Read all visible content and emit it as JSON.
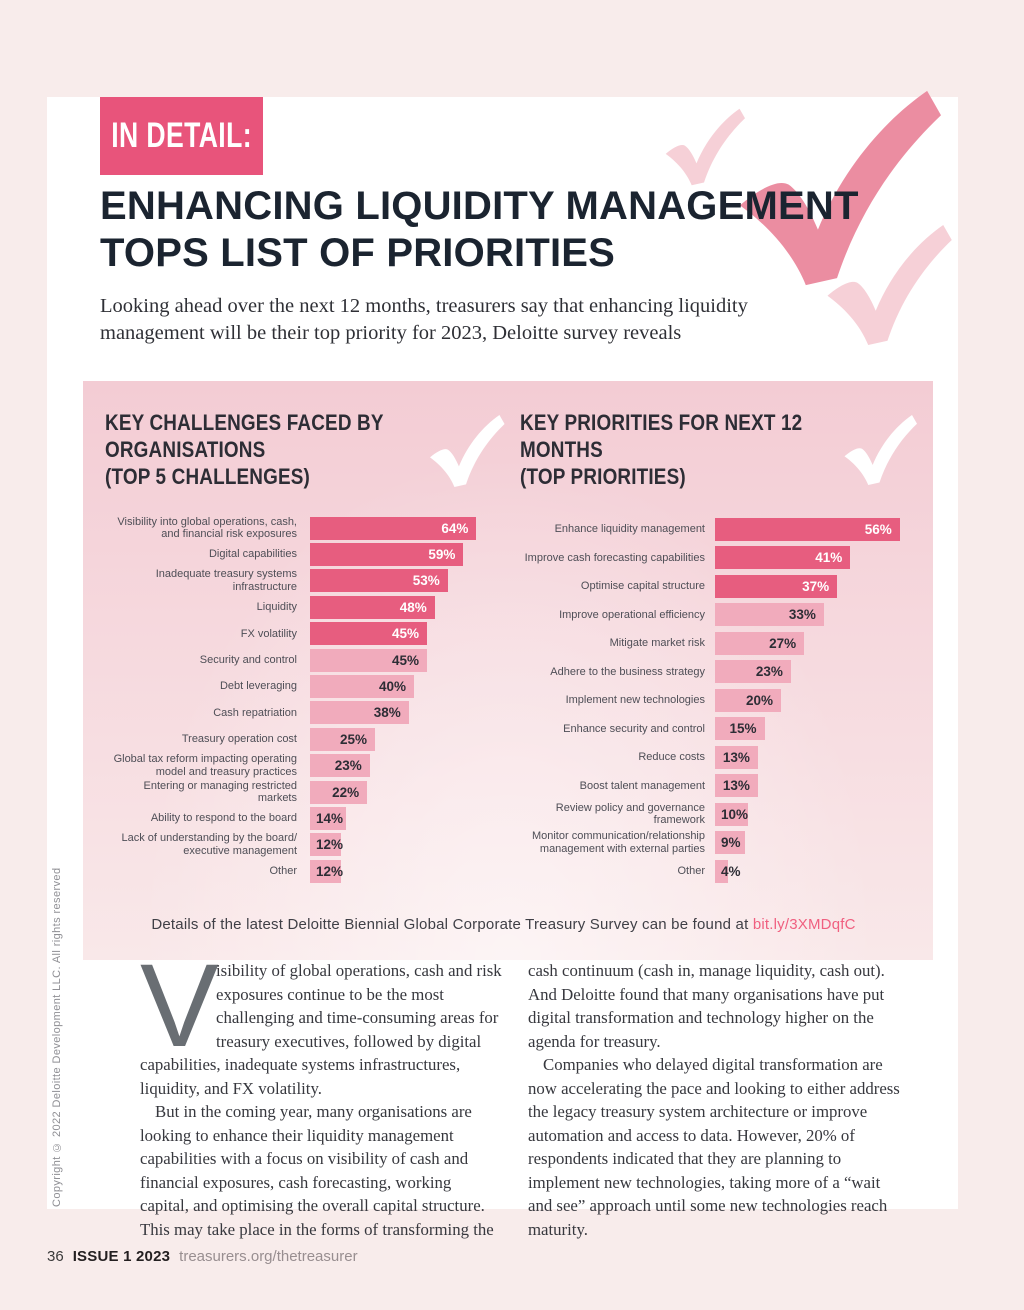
{
  "page": {
    "kicker": "IN DETAIL:",
    "title": "ENHANCING LIQUIDITY MANAGEMENT\nTOPS LIST OF PRIORITIES",
    "standfirst": "Looking ahead over the next 12 months, treasurers say that enhancing liquidity management will be their top priority for 2023, Deloitte survey reveals",
    "details_prefix": "Details of the latest Deloitte Biennial Global Corporate Treasury Survey can be found at ",
    "details_link": "bit.ly/3XMDqfC",
    "copyright_vertical": "Copyright © 2022 Deloitte Development LLC. All rights reserved",
    "footer": {
      "page_number": "36",
      "issue": "ISSUE 1 2023",
      "site": "treasurers.org/thetreasurer"
    }
  },
  "body": {
    "dropcap": "V",
    "col1_p1_rest": "isibility of global operations, cash and risk exposures continue to be the most challenging and time-consuming areas for treasury executives, followed by digital capabilities, inadequate systems infrastructures, liquidity, and FX volatility.",
    "col1_p2": "But in the coming year, many organisations are looking to enhance their liquidity management capabilities with a focus on visibility of cash and financial exposures, cash forecasting, working capital, and optimising the overall capital structure. This may take place in the forms of transforming the",
    "col2_p1": "cash continuum (cash in, manage liquidity, cash out). And Deloitte found that many organisations have put digital transformation and technology higher on the agenda for treasury.",
    "col2_p2": "Companies who delayed digital transformation are now accelerating the pace and looking to either address the legacy treasury system architecture or improve automation and access to data. However, 20% of respondents indicated that they are planning to implement new technologies, taking more of a “wait and see” approach until some new technologies reach maturity."
  },
  "chart_data": [
    {
      "type": "bar",
      "orientation": "horizontal",
      "title": "KEY CHALLENGES FACED BY ORGANISATIONS\n(TOP 5 CHALLENGES)",
      "unit": "%",
      "highlight_top": 5,
      "xlim": [
        0,
        64
      ],
      "categories": [
        "Visibility into global operations, cash,\nand financial risk exposures",
        "Digital capabilities",
        "Inadequate treasury systems\ninfrastructure",
        "Liquidity",
        "FX volatility",
        "Security and control",
        "Debt leveraging",
        "Cash repatriation",
        "Treasury operation cost",
        "Global tax reform impacting operating\nmodel and treasury practices",
        "Entering or managing restricted\nmarkets",
        "Ability to respond to the board",
        "Lack of understanding by the board/\nexecutive management",
        "Other"
      ],
      "values": [
        64,
        59,
        53,
        48,
        45,
        45,
        40,
        38,
        25,
        23,
        22,
        14,
        12,
        12
      ]
    },
    {
      "type": "bar",
      "orientation": "horizontal",
      "title": "KEY PRIORITIES FOR NEXT 12 MONTHS\n(TOP PRIORITIES)",
      "unit": "%",
      "highlight_top": 3,
      "xlim": [
        0,
        56
      ],
      "categories": [
        "Enhance liquidity management",
        "Improve cash forecasting capabilities",
        "Optimise capital structure",
        "Improve operational efficiency",
        "Mitigate market risk",
        "Adhere to the business strategy",
        "Implement new technologies",
        "Enhance security and control",
        "Reduce costs",
        "Boost talent management",
        "Review policy and governance\nframework",
        "Monitor communication/relationship\nmanagement with external parties",
        "Other"
      ],
      "values": [
        56,
        41,
        37,
        33,
        27,
        23,
        20,
        15,
        13,
        13,
        10,
        9,
        4
      ]
    }
  ],
  "colors": {
    "accent_dark_bar": "#e75d7f",
    "accent_light_bar": "#f1abbc",
    "kicker_bg": "#e8547b",
    "title_navy": "#1b2430",
    "panel_pink_top": "#f3ccd4",
    "panel_pink_bottom": "#f9e8e9",
    "link_pink": "#f06080",
    "outer_background": "#f8eceb"
  }
}
